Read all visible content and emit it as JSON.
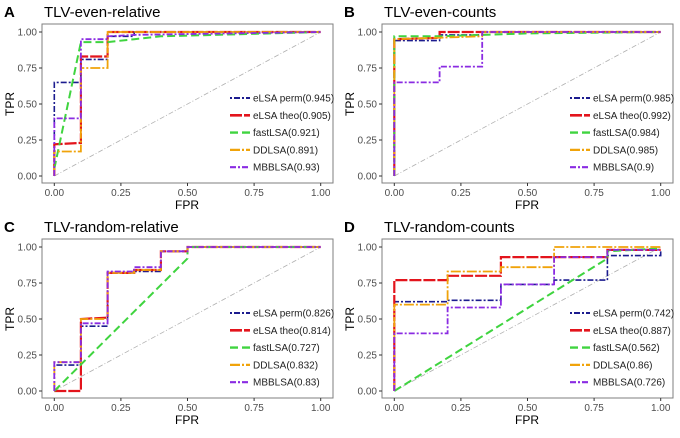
{
  "chart_data": [
    {
      "type": "line",
      "panel_label": "A",
      "title": "TLV-even-relative",
      "xlabel": "FPR",
      "ylabel": "TPR",
      "xlim": [
        0,
        1
      ],
      "ylim": [
        0,
        1
      ],
      "xticks": [
        "0.00",
        "0.25",
        "0.50",
        "0.75",
        "1.00"
      ],
      "yticks": [
        "0.00",
        "0.25",
        "0.50",
        "0.75",
        "1.00"
      ],
      "grid": false,
      "legend": "bottom-right",
      "series": [
        {
          "name": "eLSA perm(0.945)",
          "points": [
            [
              0,
              0
            ],
            [
              0,
              0.65
            ],
            [
              0.1,
              0.65
            ],
            [
              0.1,
              0.81
            ],
            [
              0.2,
              0.81
            ],
            [
              0.2,
              0.97
            ],
            [
              0.3,
              0.97
            ],
            [
              0.3,
              1
            ],
            [
              1,
              1
            ]
          ]
        },
        {
          "name": "eLSA theo(0.905)",
          "points": [
            [
              0,
              0
            ],
            [
              0,
              0.22
            ],
            [
              0.1,
              0.23
            ],
            [
              0.1,
              0.83
            ],
            [
              0.2,
              0.83
            ],
            [
              0.2,
              1
            ],
            [
              1,
              1
            ]
          ]
        },
        {
          "name": "fastLSA(0.921)",
          "points": [
            [
              0,
              0.05
            ],
            [
              0.1,
              0.93
            ],
            [
              0.2,
              0.93
            ],
            [
              0.3,
              0.95
            ],
            [
              0.4,
              0.97
            ],
            [
              0.6,
              0.98
            ],
            [
              1,
              1
            ]
          ]
        },
        {
          "name": "DDLSA(0.891)",
          "points": [
            [
              0,
              0
            ],
            [
              0,
              0.17
            ],
            [
              0.1,
              0.17
            ],
            [
              0.1,
              0.75
            ],
            [
              0.2,
              0.75
            ],
            [
              0.2,
              1
            ],
            [
              1,
              1
            ]
          ]
        },
        {
          "name": "MBBLSA(0.93)",
          "points": [
            [
              0,
              0
            ],
            [
              0,
              0.4
            ],
            [
              0.1,
              0.4
            ],
            [
              0.1,
              0.95
            ],
            [
              0.2,
              0.95
            ],
            [
              0.2,
              0.97
            ],
            [
              0.3,
              0.98
            ],
            [
              1,
              1
            ]
          ]
        }
      ]
    },
    {
      "type": "line",
      "panel_label": "B",
      "title": "TLV-even-counts",
      "xlabel": "FPR",
      "ylabel": "TPR",
      "xlim": [
        0,
        1
      ],
      "ylim": [
        0,
        1
      ],
      "xticks": [
        "0.00",
        "0.25",
        "0.50",
        "0.75",
        "1.00"
      ],
      "yticks": [
        "0.00",
        "0.25",
        "0.50",
        "0.75",
        "1.00"
      ],
      "grid": false,
      "legend": "bottom-right",
      "series": [
        {
          "name": "eLSA perm(0.985)",
          "points": [
            [
              0,
              0
            ],
            [
              0,
              0.94
            ],
            [
              0.17,
              0.94
            ],
            [
              0.17,
              0.98
            ],
            [
              0.33,
              0.98
            ],
            [
              0.33,
              1
            ],
            [
              1,
              1
            ]
          ]
        },
        {
          "name": "eLSA theo(0.992)",
          "points": [
            [
              0,
              0
            ],
            [
              0,
              0.95
            ],
            [
              0.17,
              0.96
            ],
            [
              0.17,
              1
            ],
            [
              1,
              1
            ]
          ]
        },
        {
          "name": "fastLSA(0.984)",
          "points": [
            [
              0,
              0
            ],
            [
              0,
              0.97
            ],
            [
              0.17,
              0.97
            ],
            [
              0.33,
              0.98
            ],
            [
              0.5,
              0.99
            ],
            [
              1,
              1
            ]
          ]
        },
        {
          "name": "DDLSA(0.985)",
          "points": [
            [
              0,
              0
            ],
            [
              0,
              0.95
            ],
            [
              0.33,
              0.97
            ],
            [
              0.33,
              1
            ],
            [
              1,
              1
            ]
          ]
        },
        {
          "name": "MBBLSA(0.9)",
          "points": [
            [
              0,
              0
            ],
            [
              0,
              0.65
            ],
            [
              0.17,
              0.65
            ],
            [
              0.17,
              0.76
            ],
            [
              0.33,
              0.76
            ],
            [
              0.33,
              1
            ],
            [
              1,
              1
            ]
          ]
        }
      ]
    },
    {
      "type": "line",
      "panel_label": "C",
      "title": "TLV-random-relative",
      "xlabel": "FPR",
      "ylabel": "TPR",
      "xlim": [
        0,
        1
      ],
      "ylim": [
        0,
        1
      ],
      "xticks": [
        "0.00",
        "0.25",
        "0.50",
        "0.75",
        "1.00"
      ],
      "yticks": [
        "0.00",
        "0.25",
        "0.50",
        "0.75",
        "1.00"
      ],
      "grid": false,
      "legend": "bottom-right",
      "series": [
        {
          "name": "eLSA perm(0.826)",
          "points": [
            [
              0,
              0
            ],
            [
              0,
              0.18
            ],
            [
              0.1,
              0.18
            ],
            [
              0.1,
              0.45
            ],
            [
              0.2,
              0.45
            ],
            [
              0.2,
              0.82
            ],
            [
              0.3,
              0.82
            ],
            [
              0.3,
              0.83
            ],
            [
              0.4,
              0.83
            ],
            [
              0.4,
              0.97
            ],
            [
              0.5,
              0.97
            ],
            [
              0.5,
              1
            ],
            [
              1,
              1
            ]
          ]
        },
        {
          "name": "eLSA theo(0.814)",
          "points": [
            [
              0,
              0
            ],
            [
              0.1,
              0
            ],
            [
              0.1,
              0.5
            ],
            [
              0.2,
              0.51
            ],
            [
              0.2,
              0.82
            ],
            [
              0.3,
              0.82
            ],
            [
              0.3,
              0.84
            ],
            [
              0.4,
              0.84
            ],
            [
              0.4,
              0.97
            ],
            [
              0.5,
              0.97
            ],
            [
              0.5,
              1
            ],
            [
              1,
              1
            ]
          ]
        },
        {
          "name": "fastLSA(0.727)",
          "points": [
            [
              0,
              0
            ],
            [
              0.5,
              0.92
            ],
            [
              0.5,
              1
            ],
            [
              1,
              1
            ]
          ]
        },
        {
          "name": "DDLSA(0.832)",
          "points": [
            [
              0,
              0
            ],
            [
              0,
              0.2
            ],
            [
              0.1,
              0.2
            ],
            [
              0.1,
              0.5
            ],
            [
              0.2,
              0.5
            ],
            [
              0.2,
              0.82
            ],
            [
              0.3,
              0.82
            ],
            [
              0.3,
              0.84
            ],
            [
              0.4,
              0.84
            ],
            [
              0.4,
              0.97
            ],
            [
              0.5,
              0.97
            ],
            [
              0.5,
              1
            ],
            [
              1,
              1
            ]
          ]
        },
        {
          "name": "MBBLSA(0.83)",
          "points": [
            [
              0,
              0
            ],
            [
              0,
              0.2
            ],
            [
              0.1,
              0.2
            ],
            [
              0.1,
              0.47
            ],
            [
              0.2,
              0.47
            ],
            [
              0.2,
              0.83
            ],
            [
              0.3,
              0.83
            ],
            [
              0.3,
              0.86
            ],
            [
              0.4,
              0.86
            ],
            [
              0.4,
              0.97
            ],
            [
              0.5,
              0.97
            ],
            [
              0.5,
              1
            ],
            [
              1,
              1
            ]
          ]
        }
      ]
    },
    {
      "type": "line",
      "panel_label": "D",
      "title": "TLV-random-counts",
      "xlabel": "FPR",
      "ylabel": "TPR",
      "xlim": [
        0,
        1
      ],
      "ylim": [
        0,
        1
      ],
      "xticks": [
        "0.00",
        "0.25",
        "0.50",
        "0.75",
        "1.00"
      ],
      "yticks": [
        "0.00",
        "0.25",
        "0.50",
        "0.75",
        "1.00"
      ],
      "grid": false,
      "legend": "bottom-right",
      "series": [
        {
          "name": "eLSA perm(0.742)",
          "points": [
            [
              0,
              0
            ],
            [
              0,
              0.62
            ],
            [
              0.2,
              0.62
            ],
            [
              0.2,
              0.63
            ],
            [
              0.4,
              0.63
            ],
            [
              0.4,
              0.74
            ],
            [
              0.6,
              0.74
            ],
            [
              0.6,
              0.77
            ],
            [
              0.8,
              0.77
            ],
            [
              0.8,
              0.94
            ],
            [
              1,
              0.94
            ],
            [
              1,
              0.97
            ]
          ]
        },
        {
          "name": "eLSA theo(0.887)",
          "points": [
            [
              0,
              0
            ],
            [
              0,
              0.77
            ],
            [
              0.2,
              0.77
            ],
            [
              0.2,
              0.8
            ],
            [
              0.4,
              0.8
            ],
            [
              0.4,
              0.93
            ],
            [
              0.8,
              0.93
            ],
            [
              0.8,
              0.98
            ],
            [
              1,
              0.98
            ]
          ]
        },
        {
          "name": "fastLSA(0.562)",
          "points": [
            [
              0,
              0
            ],
            [
              0.8,
              0.92
            ],
            [
              0.8,
              0.97
            ],
            [
              1,
              0.99
            ]
          ]
        },
        {
          "name": "DDLSA(0.86)",
          "points": [
            [
              0,
              0
            ],
            [
              0,
              0.6
            ],
            [
              0.2,
              0.6
            ],
            [
              0.2,
              0.83
            ],
            [
              0.4,
              0.83
            ],
            [
              0.4,
              0.86
            ],
            [
              0.6,
              0.86
            ],
            [
              0.6,
              1
            ],
            [
              1,
              1
            ]
          ]
        },
        {
          "name": "MBBLSA(0.726)",
          "points": [
            [
              0,
              0
            ],
            [
              0,
              0.4
            ],
            [
              0.2,
              0.4
            ],
            [
              0.2,
              0.58
            ],
            [
              0.4,
              0.58
            ],
            [
              0.4,
              0.74
            ],
            [
              0.6,
              0.74
            ],
            [
              0.6,
              0.93
            ],
            [
              0.8,
              0.93
            ],
            [
              0.8,
              0.98
            ],
            [
              1,
              0.98
            ]
          ]
        }
      ]
    }
  ],
  "series_colors": [
    "#1c1c8f",
    "#e3141c",
    "#3fd43f",
    "#f0a30a",
    "#8a2be2"
  ],
  "reference_line_color": "#b0b0b0"
}
